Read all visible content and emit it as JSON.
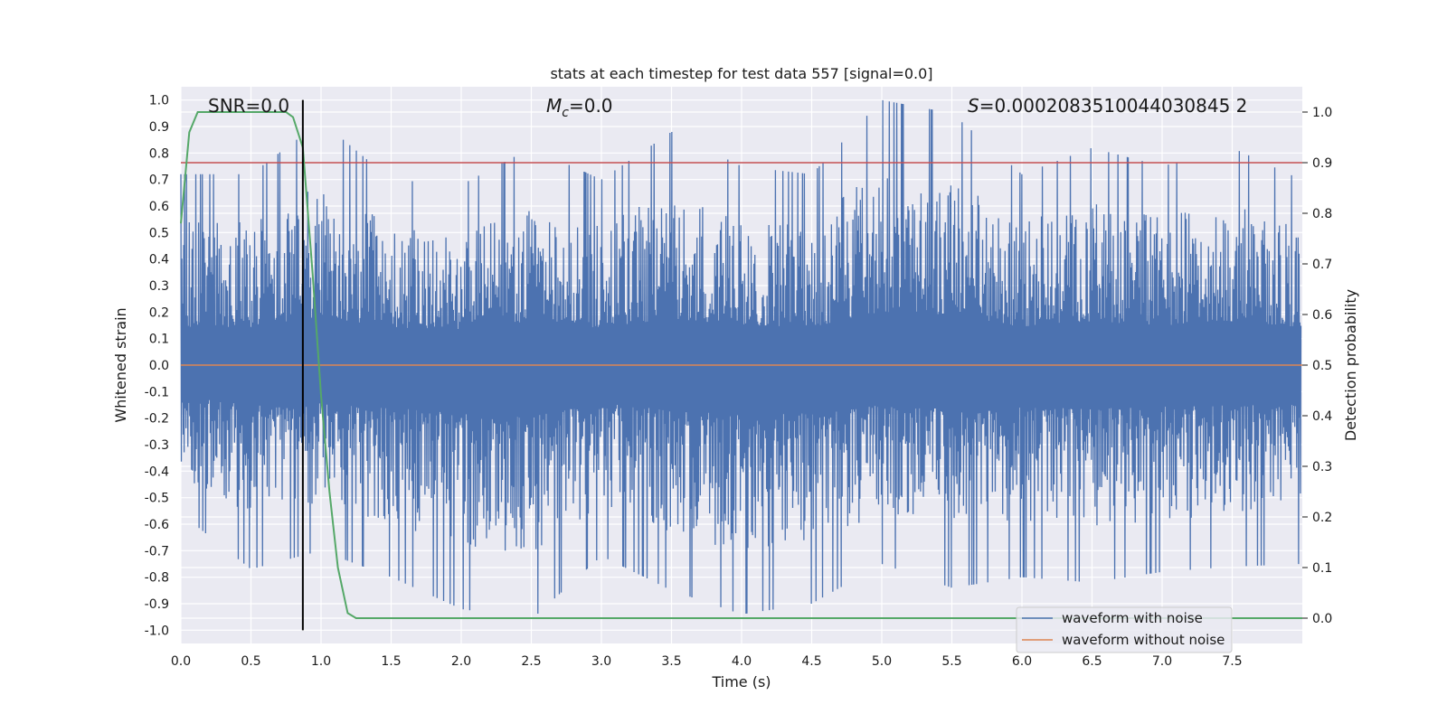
{
  "chart_data": {
    "type": "line",
    "title": "stats at each timestep for test data 557 [signal=0.0]",
    "xlabel": "Time (s)",
    "ylabel_left": "Whitened strain",
    "ylabel_right": "Detection probability",
    "xlim": [
      0.0,
      8.0
    ],
    "ylim_left": [
      -1.05,
      1.05
    ],
    "ylim_right": [
      -0.05,
      1.05
    ],
    "x_ticks": [
      "0.0",
      "0.5",
      "1.0",
      "1.5",
      "2.0",
      "2.5",
      "3.0",
      "3.5",
      "4.0",
      "4.5",
      "5.0",
      "5.5",
      "6.0",
      "6.5",
      "7.0",
      "7.5"
    ],
    "y_ticks_left": [
      "1.0",
      "0.9",
      "0.8",
      "0.7",
      "0.6",
      "0.5",
      "0.4",
      "0.3",
      "0.2",
      "0.1",
      "0.0",
      "-0.1",
      "-0.2",
      "-0.3",
      "-0.4",
      "-0.5",
      "-0.6",
      "-0.7",
      "-0.8",
      "-0.9",
      "-1.0"
    ],
    "y_ticks_right": [
      "1.0",
      "0.9",
      "0.8",
      "0.7",
      "0.6",
      "0.5",
      "0.4",
      "0.3",
      "0.2",
      "0.1",
      "0.0"
    ],
    "annotations": {
      "snr": "SNR=0.0",
      "mc_symbol": "M",
      "mc_sub": "c",
      "mc_value": "=0.0",
      "s_symbol": "S",
      "s_value": "=0.0002083510044030845 2"
    },
    "threshold_right": 0.9,
    "vertical_marker_x": 0.87,
    "grid": true,
    "legend_position": "lower-right",
    "legend": [
      "waveform with noise",
      "waveform without noise"
    ],
    "colors": {
      "noise": "#4c72b0",
      "clean": "#dd8452",
      "probability": "#55a868",
      "threshold": "#c44e52",
      "marker": "#000000",
      "axes_bg": "#eaeaf2"
    },
    "series": [
      {
        "name": "waveform with noise",
        "axis": "left",
        "envelope": {
          "x": [
            0.0,
            0.5,
            1.0,
            1.5,
            2.0,
            2.5,
            3.0,
            3.5,
            4.0,
            4.5,
            5.0,
            5.5,
            6.0,
            6.5,
            7.0,
            7.5,
            7.99
          ],
          "upper": [
            0.72,
            0.72,
            0.92,
            0.7,
            0.68,
            0.82,
            0.7,
            0.88,
            0.75,
            0.72,
            1.0,
            0.95,
            0.72,
            0.82,
            0.75,
            0.82,
            0.7
          ],
          "lower": [
            -0.56,
            -0.77,
            -0.7,
            -0.8,
            -0.92,
            -0.96,
            -0.72,
            -0.85,
            -0.94,
            -0.9,
            -0.75,
            -0.84,
            -0.8,
            -0.82,
            -0.78,
            -0.76,
            -0.75
          ]
        }
      },
      {
        "name": "waveform without noise",
        "axis": "left",
        "x": [
          0.0,
          8.0
        ],
        "y": [
          0.0,
          0.0
        ]
      },
      {
        "name": "detection probability",
        "axis": "right",
        "x": [
          0.0,
          0.06,
          0.12,
          0.25,
          0.5,
          0.75,
          0.8,
          0.87,
          0.94,
          1.0,
          1.06,
          1.12,
          1.19,
          1.25,
          1.5,
          2.0,
          3.0,
          4.0,
          5.0,
          6.0,
          7.0,
          8.0
        ],
        "y": [
          0.78,
          0.96,
          1.0,
          1.0,
          1.0,
          1.0,
          0.99,
          0.93,
          0.68,
          0.44,
          0.25,
          0.1,
          0.01,
          0.0,
          0.0,
          0.0,
          0.0,
          0.0,
          0.0,
          0.0,
          0.0,
          0.0
        ]
      }
    ]
  }
}
